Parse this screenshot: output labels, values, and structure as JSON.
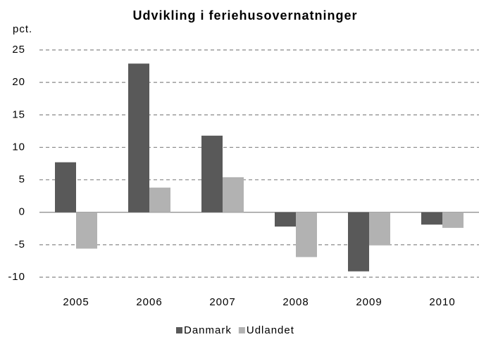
{
  "chart_data": {
    "type": "bar",
    "title": "Udvikling i feriehusovernatninger",
    "y_label": "pct.",
    "categories": [
      "2005",
      "2006",
      "2007",
      "2008",
      "2009",
      "2010"
    ],
    "series": [
      {
        "name": "Danmark",
        "color": "#595959",
        "values": [
          7.7,
          22.9,
          11.8,
          -2.2,
          -9.1,
          -1.9
        ]
      },
      {
        "name": "Udlandet",
        "color": "#b2b2b2",
        "values": [
          -5.6,
          3.8,
          5.4,
          -6.9,
          -5.1,
          -2.4
        ]
      }
    ],
    "ylim": [
      -10,
      25
    ],
    "yticks": [
      -10,
      -5,
      0,
      5,
      10,
      15,
      20,
      25
    ],
    "grid": true,
    "legend": "bottom"
  }
}
